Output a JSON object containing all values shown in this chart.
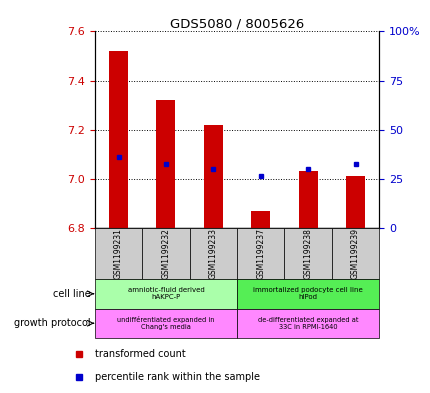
{
  "title": "GDS5080 / 8005626",
  "samples": [
    "GSM1199231",
    "GSM1199232",
    "GSM1199233",
    "GSM1199237",
    "GSM1199238",
    "GSM1199239"
  ],
  "bar_values": [
    7.52,
    7.32,
    7.22,
    6.87,
    7.03,
    7.01
  ],
  "bar_base": 6.8,
  "percentile_values": [
    7.09,
    7.06,
    7.04,
    7.01,
    7.04,
    7.06
  ],
  "ylim_left": [
    6.8,
    7.6
  ],
  "ylim_right": [
    0,
    100
  ],
  "yticks_left": [
    6.8,
    7.0,
    7.2,
    7.4,
    7.6
  ],
  "yticks_right": [
    0,
    25,
    50,
    75,
    100
  ],
  "bar_color": "#cc0000",
  "dot_color": "#0000cc",
  "cell_line_groups": [
    {
      "label": "amniotic-fluid derived\nhAKPC-P",
      "start": 0,
      "end": 3,
      "color": "#aaffaa"
    },
    {
      "label": "immortalized podocyte cell line\nhIPod",
      "start": 3,
      "end": 6,
      "color": "#55ee55"
    }
  ],
  "growth_protocol_groups": [
    {
      "label": "undifférentiated expanded in\nChang's media",
      "start": 0,
      "end": 3,
      "color": "#ff88ff"
    },
    {
      "label": "de-differentiated expanded at\n33C in RPMI-1640",
      "start": 3,
      "end": 6,
      "color": "#ff88ff"
    }
  ],
  "cell_line_label": "cell line",
  "growth_protocol_label": "growth protocol",
  "legend_bar_label": "transformed count",
  "legend_dot_label": "percentile rank within the sample",
  "tick_color_left": "#cc0000",
  "tick_color_right": "#0000cc",
  "sample_box_color": "#cccccc"
}
